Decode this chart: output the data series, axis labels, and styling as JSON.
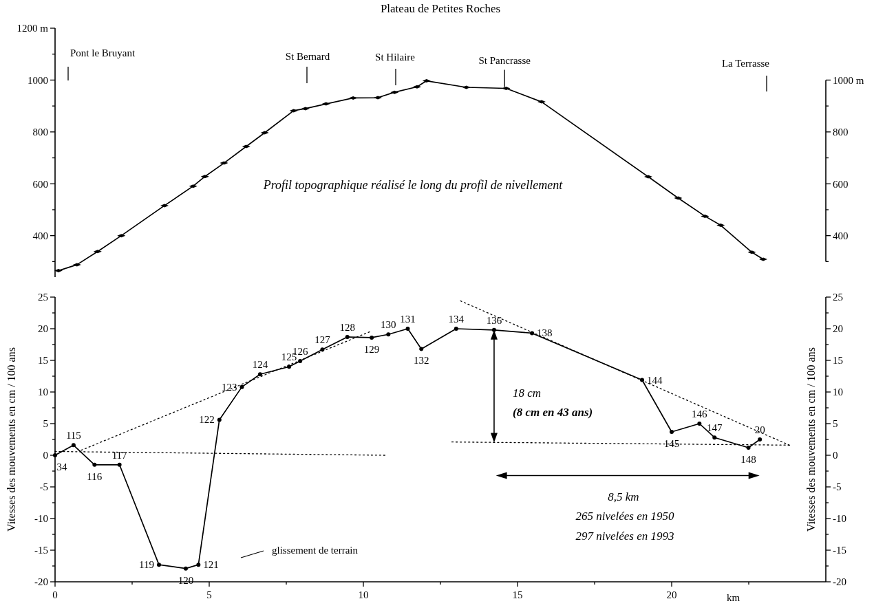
{
  "chart_data": [
    {
      "type": "line",
      "title": "Plateau de Petites Roches",
      "xlim": [
        0,
        25
      ],
      "ylim": [
        240,
        1200
      ],
      "yticks": [
        {
          "value": 1200,
          "label": "1200 m"
        },
        {
          "value": 1100,
          "label": null
        },
        1000,
        {
          "value": 900,
          "label": null
        },
        800,
        {
          "value": 700,
          "label": null
        },
        600,
        {
          "value": 500,
          "label": null
        },
        400,
        {
          "value": 300,
          "label": null
        }
      ],
      "y2lim": [
        300,
        1000
      ],
      "y2ticks": [
        {
          "value": 1000,
          "label": "1000 m"
        },
        {
          "value": 900,
          "label": null
        },
        800,
        {
          "value": 700,
          "label": null
        },
        600,
        {
          "value": 500,
          "label": null
        },
        400,
        {
          "value": 300,
          "label": null
        }
      ],
      "tick_labels": "y",
      "marker": "diamond",
      "series": [
        {
          "color": "#000000",
          "x": [
            0.11,
            0.71,
            1.38,
            2.15,
            3.55,
            4.48,
            4.86,
            5.48,
            6.2,
            6.8,
            7.74,
            8.12,
            8.79,
            9.67,
            10.47,
            11.01,
            11.74,
            12.05,
            13.34,
            14.63,
            15.78,
            19.24,
            20.21,
            21.08,
            21.59,
            22.6,
            22.97
          ],
          "values": [
            265,
            288,
            339,
            400,
            516,
            591,
            628,
            680,
            744,
            797,
            882,
            890,
            908,
            931,
            932,
            953,
            974,
            997,
            972,
            968,
            916,
            627,
            545,
            475,
            440,
            336,
            309
          ]
        }
      ],
      "annotations": [
        "Profil topographique réalisé le long du profil de nivellement",
        "Pont le Bruyant",
        "St Bernard",
        "St Hilaire",
        {
          "text": "St Pancrasse",
          "x": 14.58,
          "y": 968
        },
        "La Terrasse"
      ]
    },
    {
      "type": "line",
      "xlim": [
        0,
        25
      ],
      "xticks": [
        0,
        {
          "value": 2.5,
          "label": null
        },
        5,
        {
          "value": 7.5,
          "label": null
        },
        10,
        {
          "value": 12.5,
          "label": null
        },
        15,
        {
          "value": 17.5,
          "label": null
        },
        20,
        {
          "value": 22.5,
          "label": null
        }
      ],
      "xlabel": "km",
      "ylim": [
        -20,
        25
      ],
      "yticks": [
        -20,
        {
          "value": -17.5,
          "label": null
        },
        -15,
        {
          "value": -12.5,
          "label": null
        },
        -10,
        {
          "value": -7.5,
          "label": null
        },
        -5,
        {
          "value": -2.5,
          "label": null
        },
        0,
        {
          "value": 2.5,
          "label": null
        },
        5,
        {
          "value": 7.5,
          "label": null
        },
        10,
        {
          "value": 12.5,
          "label": null
        },
        15,
        {
          "value": 17.5,
          "label": null
        },
        20,
        {
          "value": 22.5,
          "label": null
        },
        25
      ],
      "ylabel": "Vitesses des mouvements en cm / 100 ans",
      "y2lim": [
        -20,
        25
      ],
      "y2ticks": [
        -20,
        {
          "value": -17.5,
          "label": null
        },
        -15,
        {
          "value": -12.5,
          "label": null
        },
        -10,
        {
          "value": -7.5,
          "label": null
        },
        -5,
        {
          "value": -2.5,
          "label": null
        },
        0,
        {
          "value": 2.5,
          "label": null
        },
        5,
        {
          "value": 7.5,
          "label": null
        },
        10,
        {
          "value": 12.5,
          "label": null
        },
        15,
        {
          "value": 17.5,
          "label": null
        },
        20,
        {
          "value": 22.5,
          "label": null
        },
        25
      ],
      "y2label": "Vitesses des mouvements en cm / 100 ans",
      "marker": "circle",
      "series": [
        {
          "color": "#000000",
          "x": [
            0,
            0.6,
            1.28,
            2.09,
            3.37,
            4.24,
            4.65,
            5.33,
            6.06,
            6.65,
            7.59,
            7.95,
            8.67,
            9.48,
            10.27,
            10.81,
            11.44,
            11.88,
            13.01,
            14.24,
            15.47,
            19.04,
            20.0,
            20.9,
            21.39,
            22.49,
            22.86
          ],
          "values": [
            0,
            1.6,
            -1.5,
            -1.5,
            -17.3,
            -17.9,
            -17.3,
            5.6,
            10.8,
            12.8,
            14.0,
            14.9,
            16.7,
            18.7,
            18.6,
            19.1,
            20.0,
            16.8,
            20.0,
            19.8,
            19.3,
            11.9,
            3.7,
            5.0,
            2.8,
            1.2,
            2.5
          ]
        },
        {
          "color": "#000000",
          "marker": "none",
          "line_style": "dotted",
          "x": [
            0,
            10.7
          ],
          "values": [
            0.6,
            0
          ]
        },
        {
          "color": "#000000",
          "marker": "none",
          "line_style": "dotted",
          "x": [
            0.85,
            10.2
          ],
          "values": [
            0.8,
            19.5
          ]
        },
        {
          "color": "#000000",
          "marker": "none",
          "line_style": "dotted",
          "x": [
            12.87,
            23.82
          ],
          "values": [
            2.1,
            1.6
          ]
        },
        {
          "color": "#000000",
          "marker": "none",
          "line_style": "dotted",
          "x": [
            13.15,
            23.82
          ],
          "values": [
            24.4,
            1.6
          ]
        }
      ],
      "annotations": [
        {
          "text": "34",
          "x": 0,
          "y": 0
        },
        {
          "text": "115",
          "x": 0.6,
          "y": 1.6
        },
        {
          "text": "116",
          "x": 1.28,
          "y": -1.5
        },
        {
          "text": "117",
          "x": 2.09,
          "y": -1.5
        },
        {
          "text": "119",
          "x": 3.37,
          "y": -17.3
        },
        {
          "text": "120",
          "x": 4.24,
          "y": -17.9
        },
        {
          "text": "121",
          "x": 4.65,
          "y": -17.3
        },
        {
          "text": "122",
          "x": 5.33,
          "y": 5.6
        },
        {
          "text": "123",
          "x": 6.06,
          "y": 10.8
        },
        {
          "text": "124",
          "x": 6.65,
          "y": 12.8
        },
        {
          "text": "125",
          "x": 7.59,
          "y": 14.0
        },
        {
          "text": "126",
          "x": 7.95,
          "y": 14.9
        },
        {
          "text": "127",
          "x": 8.67,
          "y": 16.7
        },
        {
          "text": "128",
          "x": 9.48,
          "y": 18.7
        },
        {
          "text": "129",
          "x": 10.27,
          "y": 18.6
        },
        {
          "text": "130",
          "x": 10.81,
          "y": 19.1
        },
        {
          "text": "131",
          "x": 11.44,
          "y": 20.0
        },
        {
          "text": "132",
          "x": 11.88,
          "y": 16.8
        },
        {
          "text": "134",
          "x": 13.01,
          "y": 20.0
        },
        {
          "text": "136",
          "x": 14.24,
          "y": 19.8
        },
        {
          "text": "138",
          "x": 15.47,
          "y": 19.3
        },
        {
          "text": "144",
          "x": 19.04,
          "y": 11.9
        },
        {
          "text": "145",
          "x": 20.0,
          "y": 3.7
        },
        {
          "text": "146",
          "x": 20.9,
          "y": 5.0
        },
        {
          "text": "147",
          "x": 21.39,
          "y": 2.8
        },
        {
          "text": "148",
          "x": 22.49,
          "y": 1.2
        },
        {
          "text": "20",
          "x": 22.86,
          "y": 2.5
        },
        "18 cm",
        "(8 cm en 43 ans)",
        "8,5 km",
        "265 nivelées en 1950",
        "297 nivelées en 1993",
        "glissement de terrain"
      ]
    }
  ]
}
